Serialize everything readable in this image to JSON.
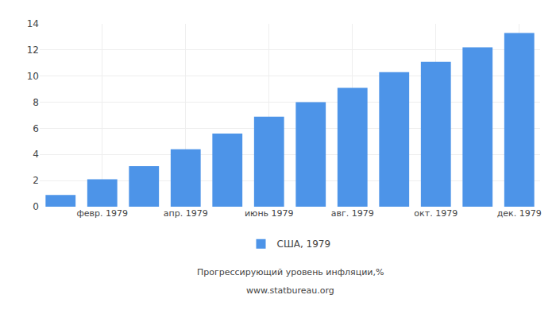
{
  "chart_data": {
    "type": "bar",
    "categories": [
      null,
      "февр. 1979",
      null,
      "апр. 1979",
      null,
      "июнь 1979",
      null,
      "авг. 1979",
      null,
      "окт. 1979",
      null,
      "дек. 1979"
    ],
    "series": [
      {
        "name": "США, 1979",
        "color": "#4d94e8",
        "values": [
          0.9,
          2.1,
          3.1,
          4.4,
          5.6,
          6.9,
          8.0,
          9.1,
          10.3,
          11.1,
          12.2,
          13.3
        ]
      }
    ],
    "ylim": [
      0,
      14
    ],
    "yticks": [
      0,
      2,
      4,
      6,
      8,
      10,
      12,
      14
    ],
    "grid": true,
    "legend": "bottom",
    "annotations": [
      "Прогрессирующий уровень инфляции,%",
      "www.statbureau.org"
    ]
  }
}
